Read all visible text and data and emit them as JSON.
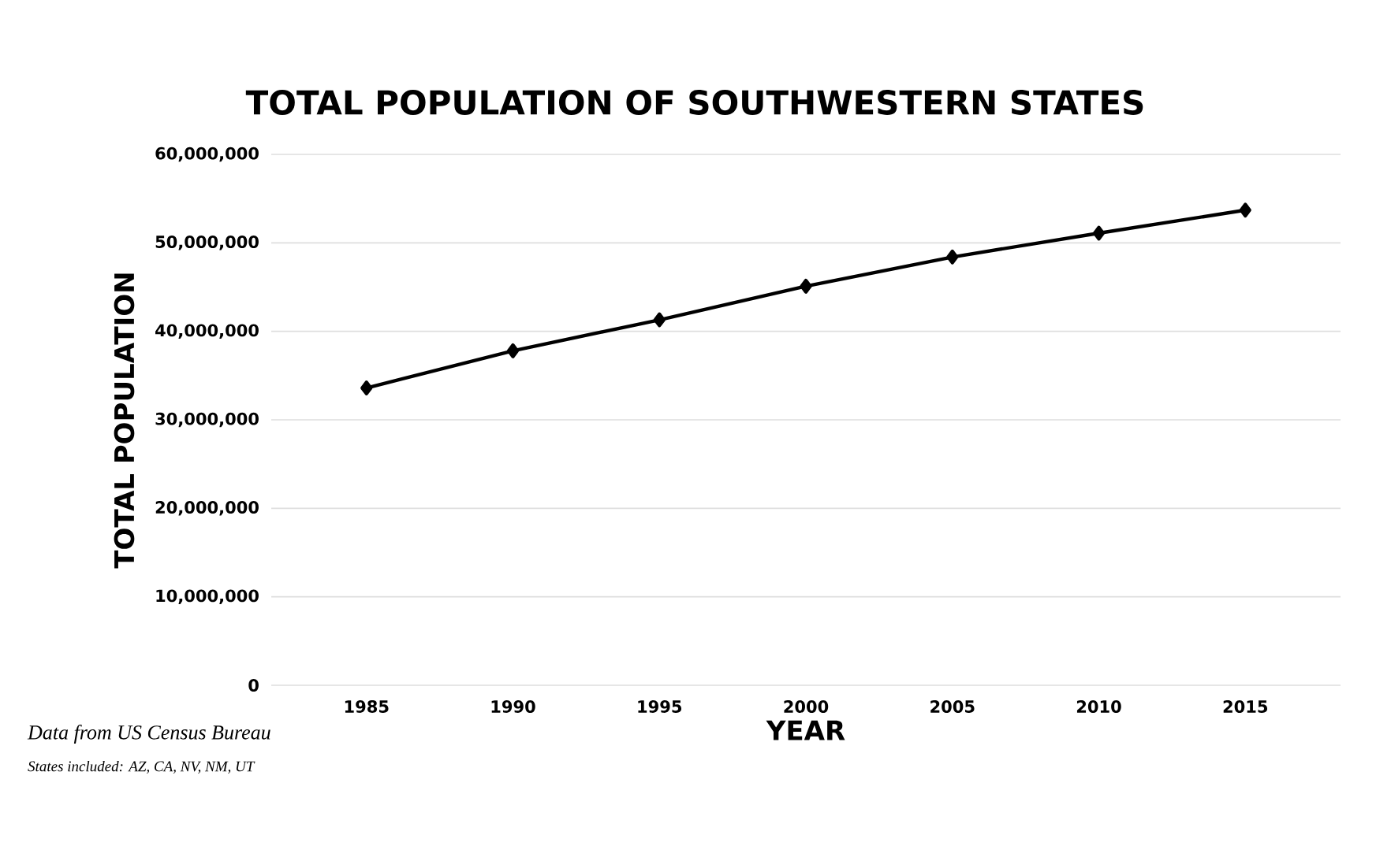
{
  "chart_data": {
    "type": "line",
    "title": "TOTAL POPULATION OF SOUTHWESTERN STATES",
    "xlabel": "YEAR",
    "ylabel": "TOTAL POPULATION",
    "categories": [
      "1985",
      "1990",
      "1995",
      "2000",
      "2005",
      "2010",
      "2015"
    ],
    "series": [
      {
        "color": "#000000",
        "values": [
          33600000,
          37800000,
          41300000,
          45100000,
          48400000,
          51100000,
          53700000
        ]
      }
    ],
    "ylim": [
      0,
      60000000
    ],
    "yticks": [
      {
        "value": 0,
        "label": "0"
      },
      {
        "value": 10000000,
        "label": "10,000,000"
      },
      {
        "value": 20000000,
        "label": "20,000,000"
      },
      {
        "value": 30000000,
        "label": "30,000,000"
      },
      {
        "value": 40000000,
        "label": "40,000,000"
      },
      {
        "value": 50000000,
        "label": "50,000,000"
      },
      {
        "value": 60000000,
        "label": "60,000,000"
      }
    ],
    "grid": "y",
    "marker": "diamond",
    "line_style": "solid",
    "annotations": [
      "Data from US Census Bureau",
      "States included: AZ, CA, NV, NM, UT"
    ]
  }
}
